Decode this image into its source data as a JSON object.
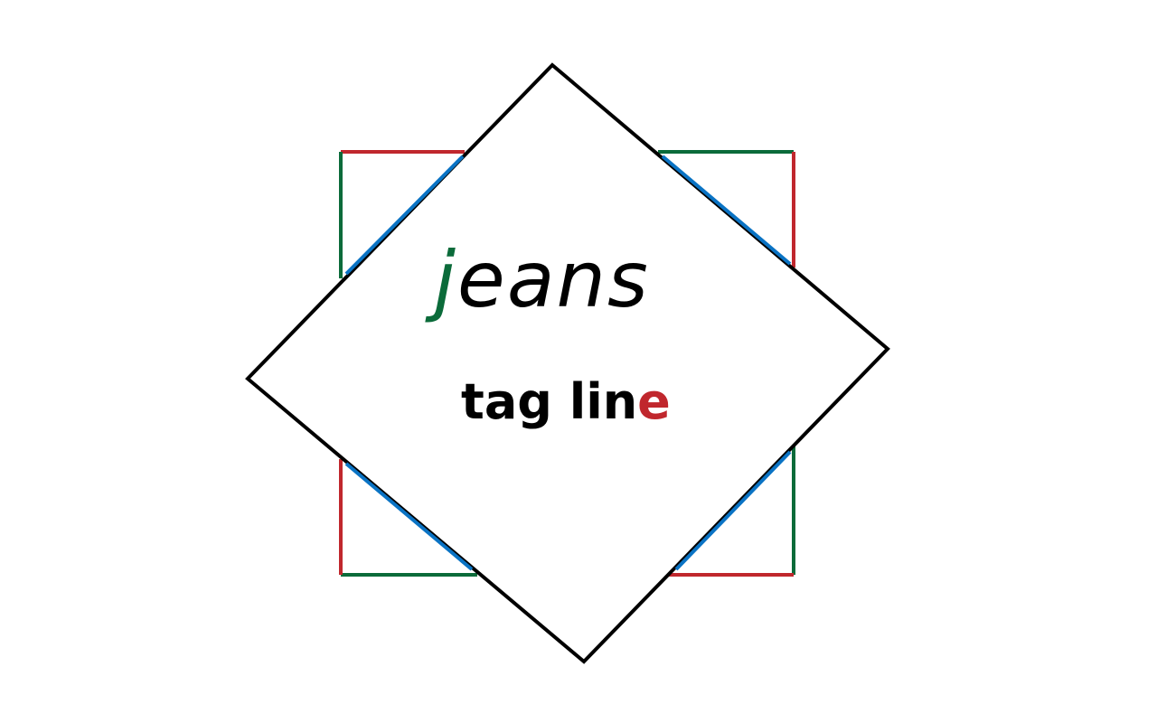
{
  "logo": {
    "brand_initial": "j",
    "brand_rest": "eans",
    "tagline_main": "tag lin",
    "tagline_last": "e"
  },
  "colors": {
    "outline": "#000000",
    "green": "#0b6b3a",
    "red": "#c0272d",
    "blue": "#0a73c4",
    "background": "#ffffff"
  }
}
